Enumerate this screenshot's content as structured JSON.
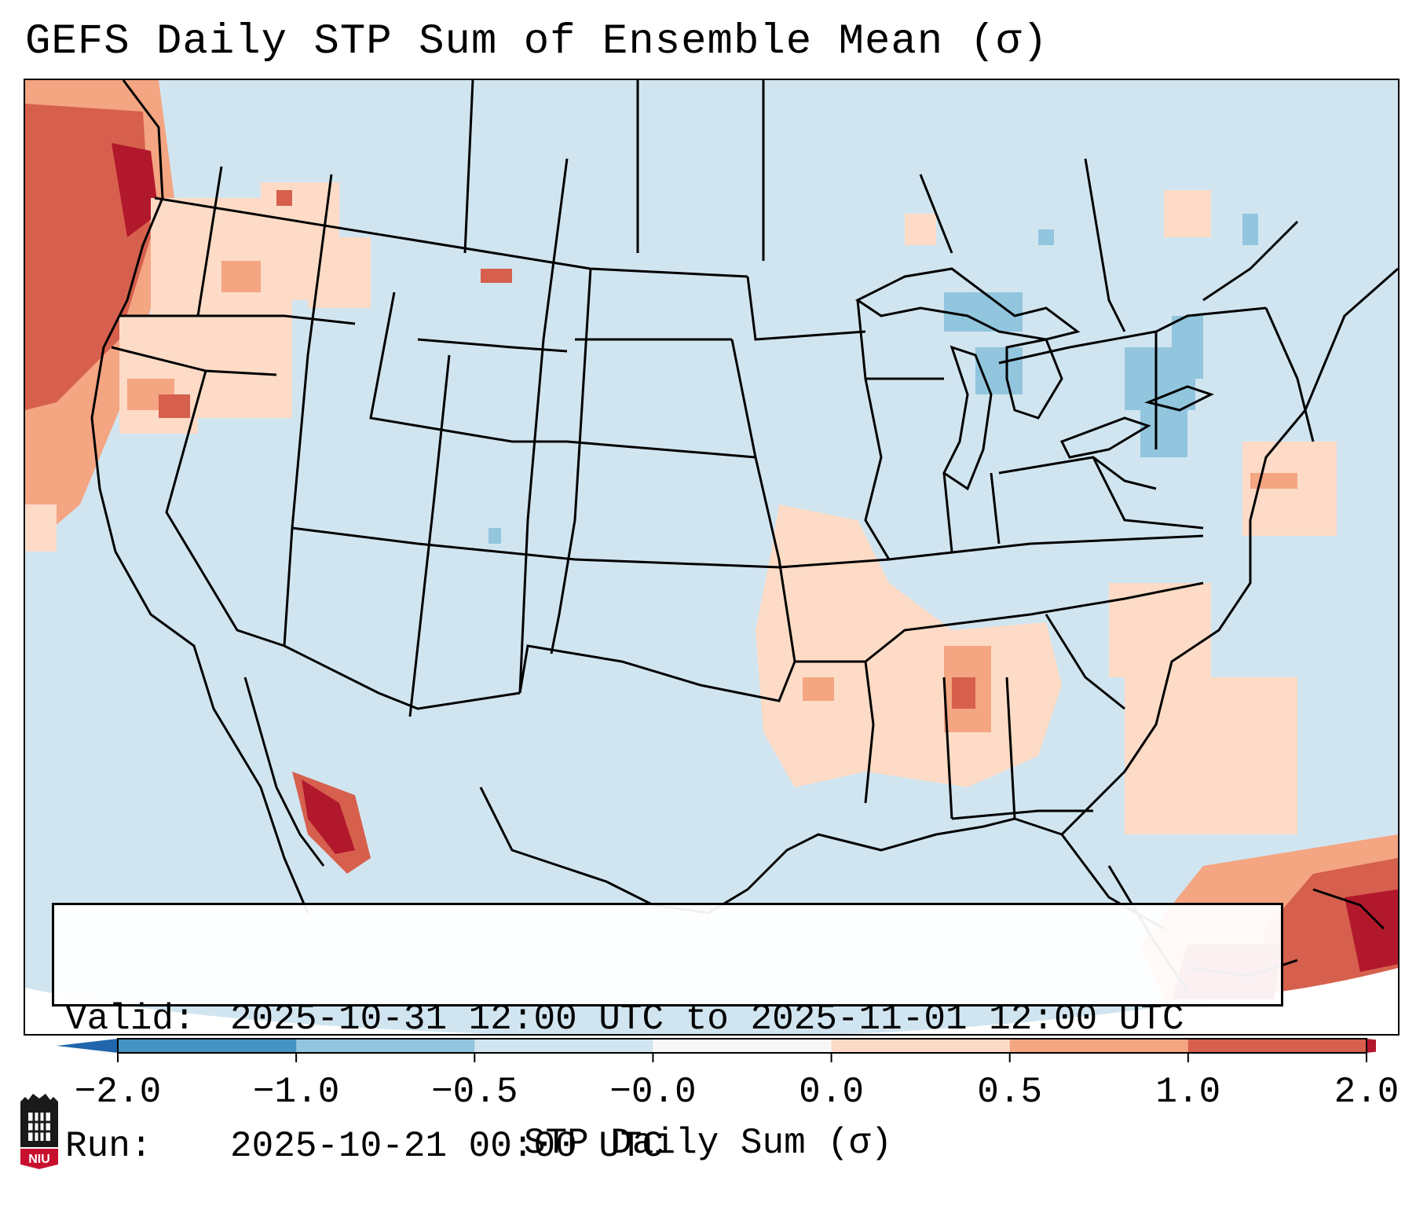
{
  "title": "GEFS Daily STP Sum of Ensemble Mean (σ)",
  "info": {
    "valid_label": "Valid:",
    "valid_value": "2025-10-31 12:00 UTC to 2025-11-01 12:00 UTC",
    "run_label": "Run:",
    "run_value": "2025-10-21 00:00 UTC"
  },
  "colorbar": {
    "label": "STP Daily Sum (σ)",
    "ticks": [
      "−2.0",
      "−1.0",
      "−0.5",
      "−0.0",
      "0.0",
      "0.5",
      "1.0",
      "2.0"
    ],
    "bins": [
      {
        "range": "-2.0 to -1.0",
        "color": "#4393c3"
      },
      {
        "range": "-1.0 to -0.5",
        "color": "#92c5de"
      },
      {
        "range": "-0.5 to -0.0",
        "color": "#d1e5f0"
      },
      {
        "range": "-0.0 to 0.0",
        "color": "#f7f7f7"
      },
      {
        "range": "0.0 to 0.5",
        "color": "#fddbc7"
      },
      {
        "range": "0.5 to 1.0",
        "color": "#f4a582"
      },
      {
        "range": "1.0 to 2.0",
        "color": "#d6604d"
      }
    ],
    "under_color": "#2166ac",
    "over_color": "#b2182b"
  },
  "map": {
    "background_color": "#d1e5f0",
    "anomaly_regions": [
      {
        "region": "Pacific Northwest coast",
        "level": "1.0 to 2.0"
      },
      {
        "region": "Gulf of California",
        "level": "above 2.0"
      },
      {
        "region": "Lower Mississippi Valley and Southeast",
        "level": "0.0 to 1.0"
      },
      {
        "region": "Great Lakes",
        "level": "-1.0 to -0.5"
      },
      {
        "region": "Caribbean",
        "level": "above 2.0"
      }
    ]
  },
  "logo": {
    "text": "NIU",
    "name": "niu-logo"
  }
}
